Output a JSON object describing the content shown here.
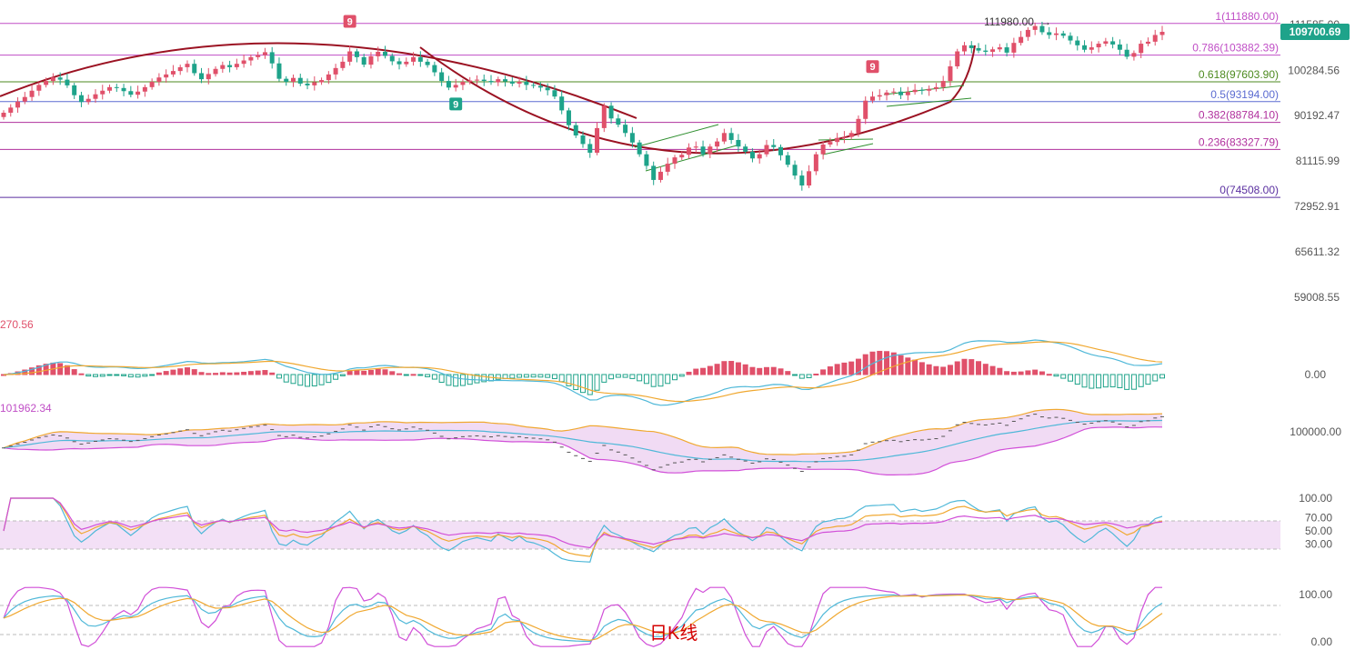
{
  "chart_data": {
    "type": "candlestick",
    "price_axis": {
      "ticks": [
        "111585.00",
        "100284.56",
        "90192.47",
        "81115.99",
        "72952.91",
        "65611.32",
        "59008.55"
      ],
      "range": [
        57500,
        113500
      ]
    },
    "last_price": "109700.69",
    "last_price_color": "#1ea38a",
    "high_label": "111980.00",
    "fib_levels": [
      {
        "ratio": "1",
        "value": 111880.0,
        "label": "1(111880.00)",
        "color": "#c04ec6"
      },
      {
        "ratio": "0.786",
        "value": 103882.39,
        "label": "0.786(103882.39)",
        "color": "#c04ec6"
      },
      {
        "ratio": "0.618",
        "value": 97603.9,
        "label": "0.618(97603.90)",
        "color": "#4d8a1f"
      },
      {
        "ratio": "0.5",
        "value": 93194.0,
        "label": "0.5(93194.00)",
        "color": "#5b6bd1"
      },
      {
        "ratio": "0.382",
        "value": 88784.1,
        "label": "0.382(88784.10)",
        "color": "#b0309d"
      },
      {
        "ratio": "0.236",
        "value": 83327.79,
        "label": "0.236(83327.79)",
        "color": "#b0309d"
      },
      {
        "ratio": "0",
        "value": 74508.0,
        "label": "0(74508.00)",
        "color": "#5a2fa0"
      }
    ],
    "td_markers": [
      {
        "label": "9",
        "candle": 49,
        "color": "#e0506a"
      },
      {
        "label": "9",
        "candle": 64,
        "color": "#1ea38a"
      },
      {
        "label": "9",
        "candle": 123,
        "color": "#e0506a"
      }
    ],
    "indicators": {
      "macd": {
        "label": "270.56",
        "zero_label": "0.00"
      },
      "boll": {
        "label": "101962.34",
        "mid_label": "100000.00"
      },
      "rsi": {
        "ticks": [
          "100.00",
          "70.00",
          "50.00",
          "30.00"
        ]
      },
      "kdj": {
        "ticks": [
          "100.00",
          "0.00"
        ]
      }
    },
    "period_label": "日K线",
    "candles_close": [
      90800,
      91900,
      93200,
      94200,
      95600,
      96900,
      97800,
      98600,
      98100,
      96800,
      94600,
      93100,
      93800,
      94800,
      95600,
      96400,
      96200,
      95500,
      94700,
      95400,
      96400,
      97600,
      98600,
      99300,
      100100,
      101000,
      101800,
      99600,
      98200,
      99400,
      100600,
      101500,
      101000,
      101800,
      102600,
      103400,
      103900,
      104600,
      101900,
      98300,
      97600,
      98500,
      97200,
      96800,
      97500,
      98000,
      99300,
      100800,
      102300,
      104800,
      103400,
      101600,
      103600,
      104700,
      103700,
      102400,
      101700,
      102300,
      103400,
      102300,
      101500,
      99800,
      97800,
      96300,
      96900,
      97600,
      97900,
      98100,
      97800,
      97500,
      98200,
      97700,
      97200,
      97600,
      96900,
      96700,
      96300,
      95700,
      94300,
      91300,
      88200,
      86100,
      84400,
      82700,
      87600,
      92300,
      89600,
      88300,
      86600,
      84700,
      82400,
      80200,
      77600,
      79100,
      80600,
      81800,
      82300,
      83700,
      83900,
      82400,
      83900,
      84900,
      86600,
      85200,
      83900,
      82900,
      81600,
      82400,
      84200,
      83800,
      82200,
      80400,
      78400,
      76600,
      79200,
      82400,
      84300,
      84800,
      85600,
      85800,
      86600,
      89500,
      93400,
      94300,
      94600,
      95200,
      95400,
      94600,
      95300,
      95800,
      95600,
      96000,
      96400,
      97800,
      101200,
      104800,
      106300,
      105600,
      105000,
      104700,
      105300,
      105800,
      104500,
      106900,
      108400,
      110200,
      111200,
      109600,
      108900,
      109300,
      108700,
      107500,
      106300,
      105200,
      105800,
      106700,
      107300,
      106500,
      105200,
      103500,
      104400,
      106700,
      107200,
      108900,
      109700
    ]
  }
}
